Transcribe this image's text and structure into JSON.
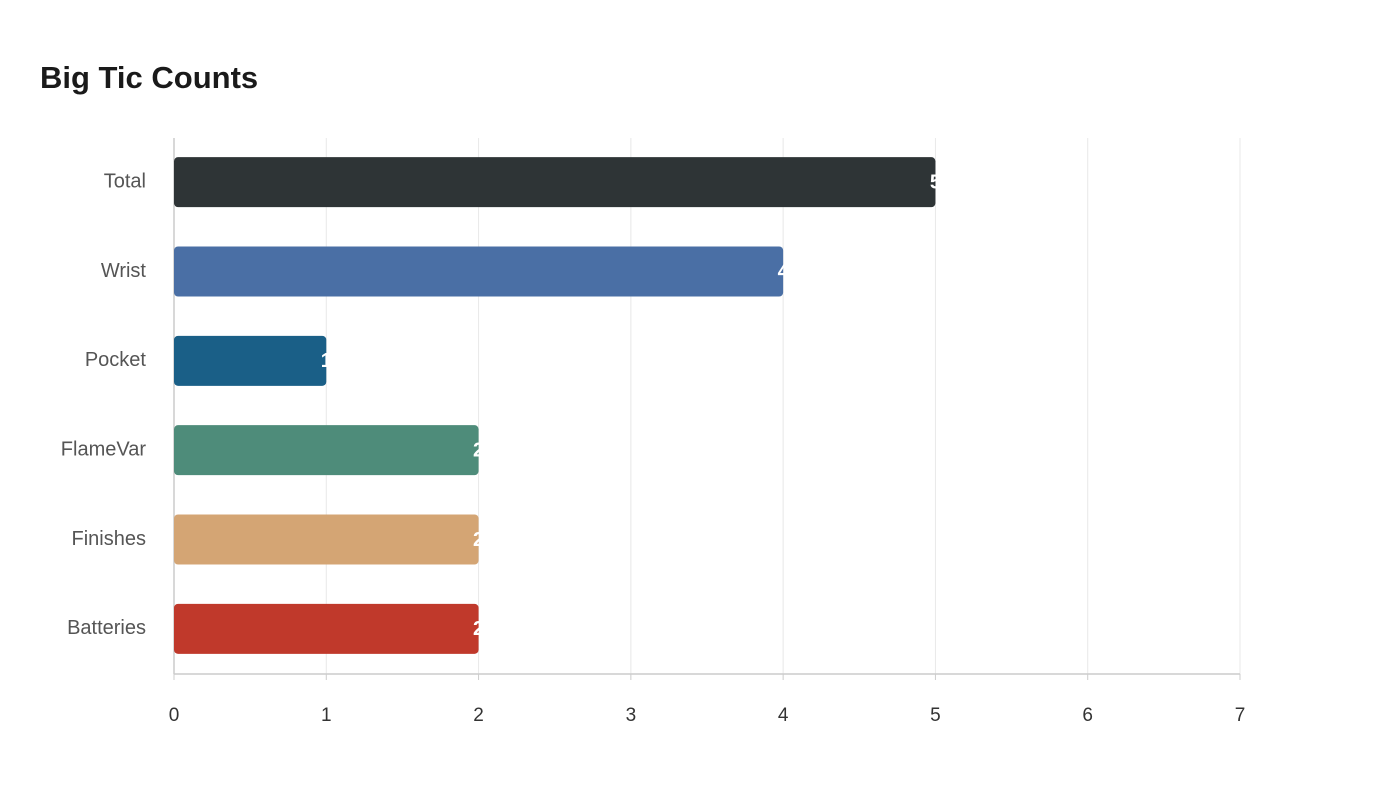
{
  "chart_data": {
    "type": "hbar",
    "title": "Big Tic Counts",
    "categories": [
      "Total",
      "Wrist",
      "Pocket",
      "FlameVar",
      "Finishes",
      "Batteries"
    ],
    "values": [
      5,
      4,
      1,
      2,
      2,
      2
    ],
    "colors": [
      "#2e3436",
      "#4a6fa5",
      "#1a5f87",
      "#4e8c7a",
      "#d4a574",
      "#c0392b"
    ],
    "xlim": [
      0,
      7
    ],
    "xticks": [
      0,
      1,
      2,
      3,
      4,
      5,
      6,
      7
    ],
    "grid": true
  }
}
